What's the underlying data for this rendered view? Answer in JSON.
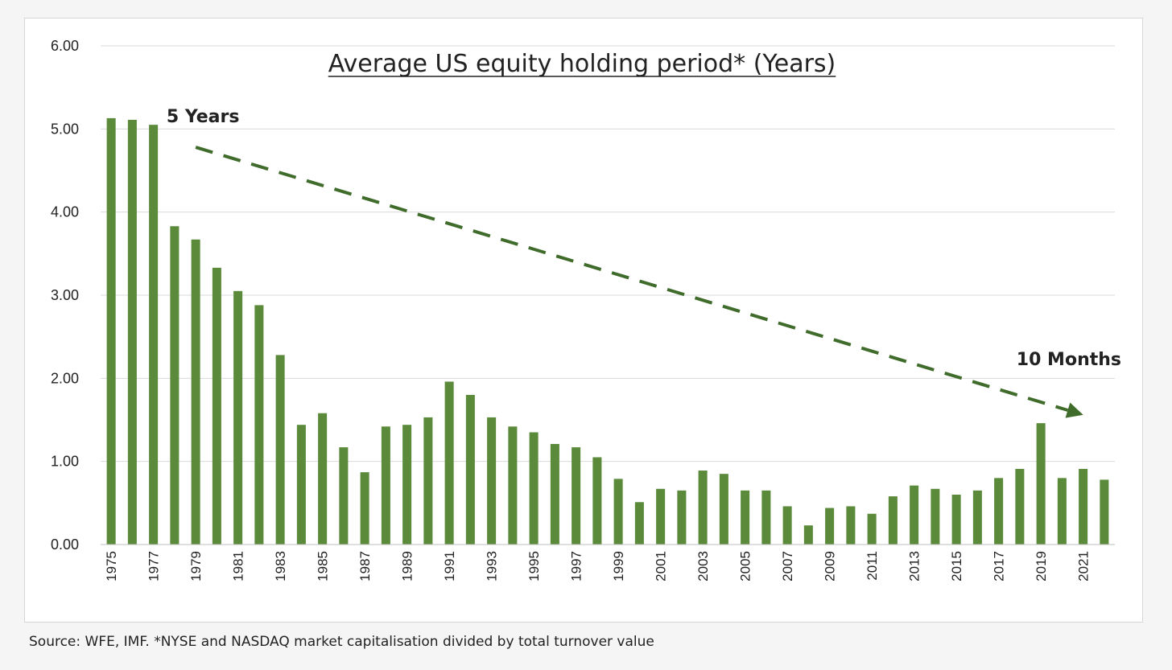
{
  "chart_data": {
    "type": "bar",
    "title": "Average US equity holding period* (Years)",
    "xlabel": "",
    "ylabel": "",
    "ylim": [
      0,
      6
    ],
    "yticks": [
      "0.00",
      "1.00",
      "2.00",
      "3.00",
      "4.00",
      "5.00",
      "6.00"
    ],
    "ytick_values": [
      0,
      1,
      2,
      3,
      4,
      5,
      6
    ],
    "grid": true,
    "bar_color": "#5a8a3a",
    "categories": [
      "1975",
      "1976",
      "1977",
      "1978",
      "1979",
      "1980",
      "1981",
      "1982",
      "1983",
      "1984",
      "1985",
      "1986",
      "1987",
      "1988",
      "1989",
      "1990",
      "1991",
      "1992",
      "1993",
      "1994",
      "1995",
      "1996",
      "1997",
      "1998",
      "1999",
      "2000",
      "2001",
      "2002",
      "2003",
      "2004",
      "2005",
      "2006",
      "2007",
      "2008",
      "2009",
      "2010",
      "2011",
      "2012",
      "2013",
      "2014",
      "2015",
      "2016",
      "2017",
      "2018",
      "2019",
      "2020",
      "2021",
      "2022"
    ],
    "tick_labels_shown": [
      "1975",
      "1977",
      "1979",
      "1981",
      "1983",
      "1985",
      "1987",
      "1989",
      "1991",
      "1993",
      "1995",
      "1997",
      "1999",
      "2001",
      "2003",
      "2005",
      "2007",
      "2009",
      "2011",
      "2013",
      "2015",
      "2017",
      "2019",
      "2021"
    ],
    "values": [
      5.13,
      5.11,
      5.05,
      3.83,
      3.67,
      3.33,
      3.05,
      2.88,
      2.28,
      1.44,
      1.58,
      1.17,
      0.87,
      1.42,
      1.44,
      1.53,
      1.96,
      1.8,
      1.53,
      1.42,
      1.35,
      1.21,
      1.17,
      1.05,
      0.79,
      0.51,
      0.67,
      0.65,
      0.89,
      0.85,
      0.65,
      0.65,
      0.46,
      0.23,
      0.44,
      0.46,
      0.37,
      0.58,
      0.71,
      0.67,
      0.6,
      0.65,
      0.8,
      0.91,
      1.46,
      0.8,
      0.91,
      0.78
    ],
    "annotations": {
      "start_label": "5 Years",
      "end_label": "10 Months"
    },
    "trend_arrow": {
      "from": {
        "x": "1979",
        "y": 4.78
      },
      "to": {
        "x": "2021",
        "y": 1.56
      },
      "color": "#3f6b2b",
      "style": "dashed"
    }
  },
  "source_note": "Source: WFE, IMF. *NYSE and NASDAQ market capitalisation divided by total turnover value"
}
